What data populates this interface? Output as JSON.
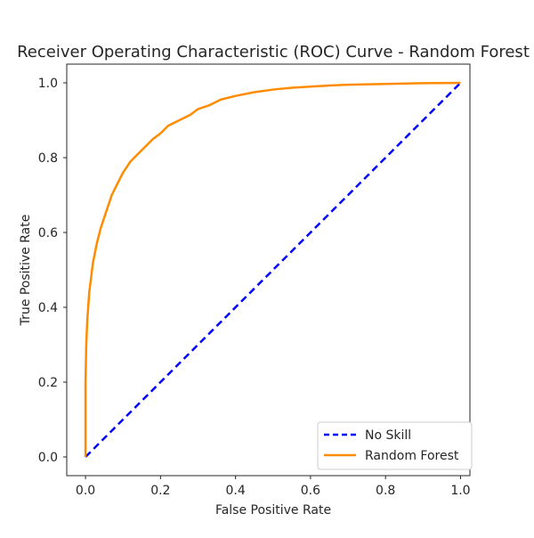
{
  "chart_data": {
    "type": "line",
    "title": "Receiver Operating Characteristic (ROC) Curve - Random Forest",
    "xlabel": "False Positive Rate",
    "ylabel": "True Positive Rate",
    "xlim": [
      -0.05,
      1.025
    ],
    "ylim": [
      -0.05,
      1.05
    ],
    "xticks": [
      "0.0",
      "0.2",
      "0.4",
      "0.6",
      "0.8",
      "1.0"
    ],
    "yticks": [
      "0.0",
      "0.2",
      "0.4",
      "0.6",
      "0.8",
      "1.0"
    ],
    "grid": false,
    "legend_position": "bottom-right",
    "series": [
      {
        "name": "No Skill",
        "style": "dashed",
        "color": "#0000ff",
        "x": [
          0,
          1
        ],
        "y": [
          0,
          1
        ]
      },
      {
        "name": "Random Forest",
        "style": "solid",
        "color": "#ff8c00",
        "x": [
          0,
          0.0,
          0.002,
          0.005,
          0.01,
          0.015,
          0.02,
          0.03,
          0.04,
          0.05,
          0.06,
          0.07,
          0.08,
          0.1,
          0.12,
          0.14,
          0.16,
          0.18,
          0.2,
          0.22,
          0.25,
          0.28,
          0.3,
          0.33,
          0.36,
          0.4,
          0.45,
          0.5,
          0.55,
          0.6,
          0.65,
          0.7,
          0.8,
          0.9,
          1.0
        ],
        "y": [
          0,
          0.2,
          0.3,
          0.37,
          0.44,
          0.48,
          0.52,
          0.57,
          0.61,
          0.64,
          0.67,
          0.7,
          0.72,
          0.76,
          0.79,
          0.81,
          0.83,
          0.85,
          0.865,
          0.885,
          0.9,
          0.915,
          0.93,
          0.94,
          0.955,
          0.965,
          0.975,
          0.982,
          0.987,
          0.99,
          0.993,
          0.995,
          0.997,
          0.999,
          1.0
        ]
      }
    ]
  }
}
